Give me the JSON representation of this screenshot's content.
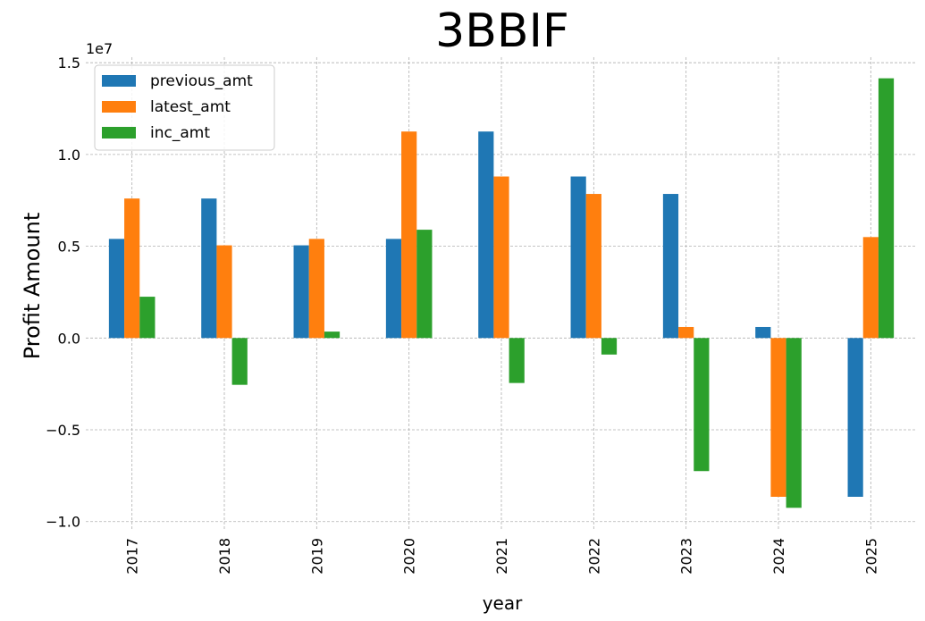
{
  "chart_data": {
    "type": "bar",
    "title": "3BBIF",
    "xlabel": "year",
    "ylabel": "Profit Amount",
    "y_scale_label": "1e7",
    "categories": [
      "2017",
      "2018",
      "2019",
      "2020",
      "2021",
      "2022",
      "2023",
      "2024",
      "2025"
    ],
    "series": [
      {
        "name": "previous_amt",
        "color": "#1f77b4",
        "values": [
          5400000,
          7600000,
          5050000,
          5400000,
          11250000,
          8800000,
          7850000,
          600000,
          -8650000
        ]
      },
      {
        "name": "latest_amt",
        "color": "#ff7f0e",
        "values": [
          7600000,
          5050000,
          5400000,
          11250000,
          8800000,
          7850000,
          600000,
          -8650000,
          5500000
        ]
      },
      {
        "name": "inc_amt",
        "color": "#2ca02c",
        "values": [
          2250000,
          -2550000,
          350000,
          5900000,
          -2450000,
          -900000,
          -7250000,
          -9250000,
          14150000
        ]
      }
    ],
    "ylim": [
      -10500000,
      15300000
    ],
    "yticks": [
      -10000000,
      -5000000,
      0,
      5000000,
      10000000,
      15000000
    ],
    "ytick_labels": [
      "−1.0",
      "−0.5",
      "0.0",
      "0.5",
      "1.0",
      "1.5"
    ],
    "grid": true,
    "legend_position": "top-left"
  }
}
